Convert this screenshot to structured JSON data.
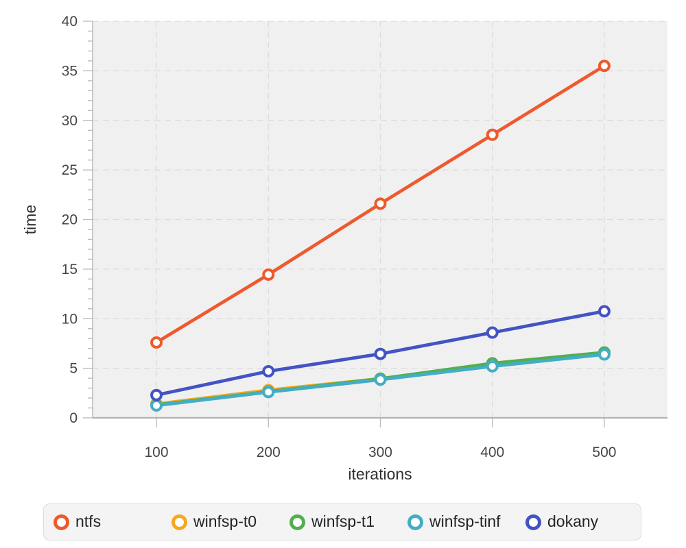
{
  "chart_data": {
    "type": "line",
    "title": "",
    "xlabel": "iterations",
    "ylabel": "time",
    "x": [
      100,
      200,
      300,
      400,
      500
    ],
    "xticks": [
      100,
      200,
      300,
      400,
      500
    ],
    "yticks": [
      0,
      5,
      10,
      15,
      20,
      25,
      30,
      35,
      40
    ],
    "y_minor_step": 1,
    "xlim": [
      43,
      556.4
    ],
    "ylim": [
      0,
      40
    ],
    "grid": "dashed",
    "legend_position": "bottom",
    "series": [
      {
        "name": "ntfs",
        "color": "#ee5a2d",
        "values": [
          7.6,
          14.45,
          21.6,
          28.55,
          35.5
        ]
      },
      {
        "name": "winfsp-t0",
        "color": "#f6a820",
        "values": [
          1.4,
          2.8,
          3.95,
          5.35,
          6.5
        ]
      },
      {
        "name": "winfsp-t1",
        "color": "#52ae4f",
        "values": [
          1.3,
          2.65,
          3.95,
          5.5,
          6.6
        ]
      },
      {
        "name": "winfsp-tinf",
        "color": "#42aec5",
        "values": [
          1.25,
          2.6,
          3.85,
          5.2,
          6.4
        ]
      },
      {
        "name": "dokany",
        "color": "#4353c3",
        "values": [
          2.3,
          4.7,
          6.45,
          8.6,
          10.75
        ]
      }
    ],
    "draw_order": [
      "winfsp-t0",
      "winfsp-t1",
      "winfsp-tinf",
      "dokany",
      "ntfs"
    ],
    "colors": {
      "plot_background": "#f0f0f0",
      "gridline": "#dcdcdc",
      "axis": "#bdbdbd",
      "domain_x": "#b3b3b3",
      "tick_label": "#454545",
      "axis_title": "#303030",
      "marker_fill": "#ffffff"
    }
  }
}
